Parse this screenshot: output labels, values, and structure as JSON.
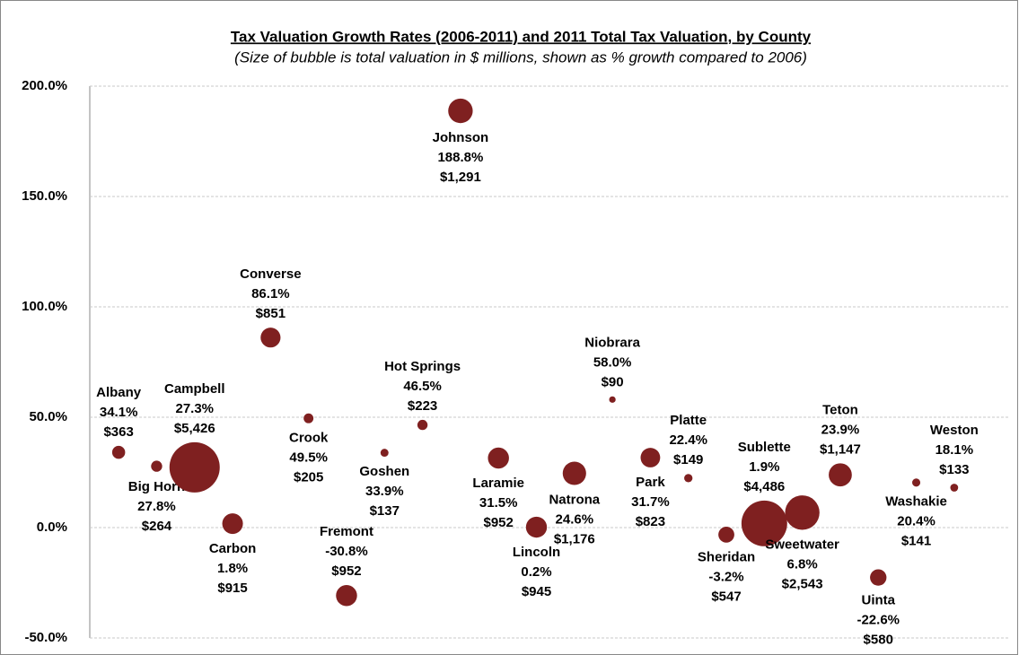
{
  "chart_data": {
    "type": "bubble",
    "title": "Tax Valuation Growth Rates (2006-2011) and 2011 Total Tax Valuation, by County",
    "subtitle": "(Size of bubble is total valuation in $ millions, shown as % growth compared to 2006)",
    "categories": [
      "Albany",
      "Big Horn",
      "Campbell",
      "Carbon",
      "Converse",
      "Crook",
      "Fremont",
      "Goshen",
      "Hot Springs",
      "Johnson",
      "Laramie",
      "Lincoln",
      "Natrona",
      "Niobrara",
      "Park",
      "Platte",
      "Sheridan",
      "Sublette",
      "Sweetwater",
      "Teton",
      "Uinta",
      "Washakie",
      "Weston"
    ],
    "values": [
      34.1,
      27.8,
      27.3,
      1.8,
      86.1,
      49.5,
      -30.8,
      33.9,
      46.5,
      188.8,
      31.5,
      0.2,
      24.6,
      58.0,
      31.7,
      22.4,
      -3.2,
      1.9,
      6.8,
      23.9,
      -22.6,
      20.4,
      18.1
    ],
    "value_labels": [
      "34.1%",
      "27.8%",
      "27.3%",
      "1.8%",
      "86.1%",
      "49.5%",
      "-30.8%",
      "33.9%",
      "46.5%",
      "188.8%",
      "31.5%",
      "0.2%",
      "24.6%",
      "58.0%",
      "31.7%",
      "22.4%",
      "-3.2%",
      "1.9%",
      "6.8%",
      "23.9%",
      "-22.6%",
      "20.4%",
      "18.1%"
    ],
    "sizes": [
      363,
      264,
      5426,
      915,
      851,
      205,
      952,
      137,
      223,
      1291,
      952,
      945,
      1176,
      90,
      823,
      149,
      547,
      4486,
      2543,
      1147,
      580,
      141,
      133
    ],
    "size_labels": [
      "$363",
      "$264",
      "$5,426",
      "$915",
      "$851",
      "$205",
      "$952",
      "$137",
      "$223",
      "$1,291",
      "$952",
      "$945",
      "$1,176",
      "$90",
      "$823",
      "$149",
      "$547",
      "$4,486",
      "$2,543",
      "$1,147",
      "$580",
      "$141",
      "$133"
    ],
    "color": "#7f2020",
    "ylim": [
      -50,
      200
    ],
    "yticks": [
      {
        "value": -50,
        "label": "-50.0%"
      },
      {
        "value": 0,
        "label": "0.0%"
      },
      {
        "value": 50,
        "label": "50.0%"
      },
      {
        "value": 100,
        "label": "100.0%"
      },
      {
        "value": 150,
        "label": "150.0%"
      },
      {
        "value": 200,
        "label": "200.0%"
      }
    ],
    "grid": true
  }
}
